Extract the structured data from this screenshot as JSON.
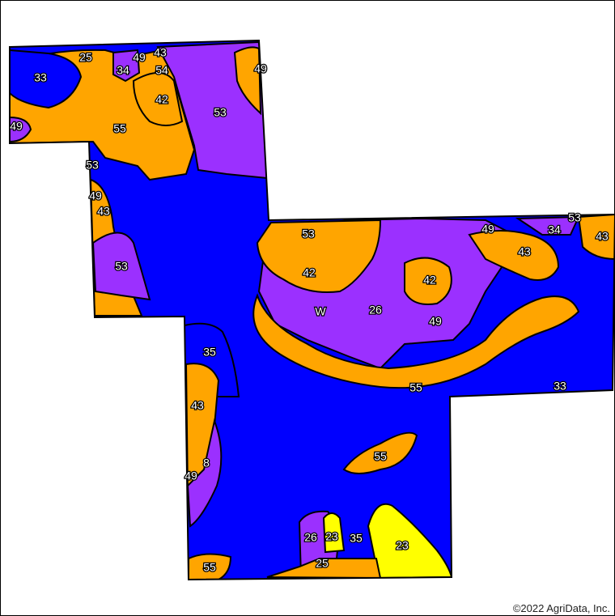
{
  "map": {
    "copyright": "©2022 AgriData, Inc.",
    "colors": {
      "blue": "#0000ff",
      "orange": "#ffa500",
      "purple": "#9b30ff",
      "yellow": "#ffff00",
      "outline": "#000000"
    },
    "labels": [
      "25",
      "49",
      "43",
      "33",
      "34",
      "54",
      "49",
      "42",
      "53",
      "49",
      "55",
      "53",
      "49",
      "43",
      "53",
      "53",
      "49",
      "34",
      "53",
      "43",
      "43",
      "42",
      "42",
      "W",
      "26",
      "49",
      "35",
      "55",
      "33",
      "43",
      "55",
      "8",
      "49",
      "26",
      "23",
      "35",
      "23",
      "25",
      "55"
    ]
  }
}
